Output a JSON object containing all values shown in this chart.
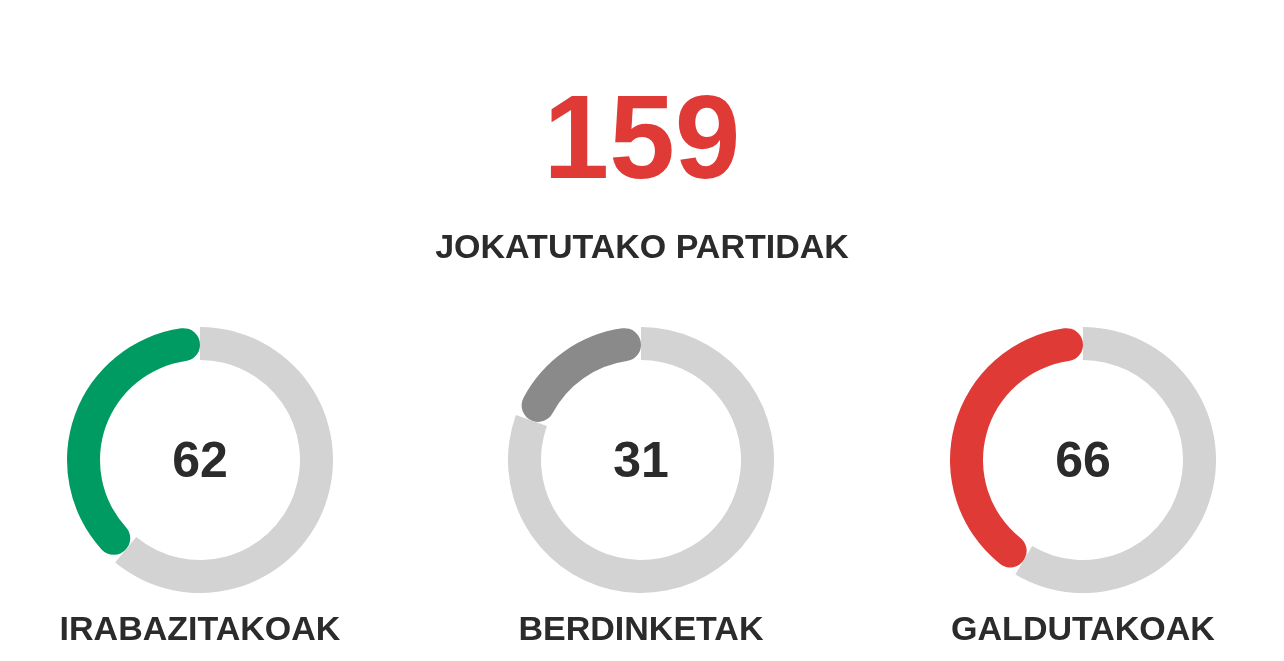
{
  "chart_data": [
    {
      "type": "other",
      "annotations": [
        "159",
        "JOKATUTAKO PARTIDAK"
      ]
    },
    {
      "type": "donut",
      "title": "IRABAZITAKOAK",
      "categories": [
        null,
        null
      ],
      "values": [
        62,
        97
      ],
      "colors": [
        "#009b63",
        "#d3d3d3"
      ],
      "value_labels": [
        "62",
        null
      ]
    },
    {
      "type": "donut",
      "title": "BERDINKETAK",
      "categories": [
        null,
        null
      ],
      "values": [
        31,
        128
      ],
      "colors": [
        "#8a8a8a",
        "#d3d3d3"
      ],
      "value_labels": [
        "31",
        null
      ]
    },
    {
      "type": "donut",
      "title": "GALDUTAKOAK",
      "categories": [
        null,
        null
      ],
      "values": [
        66,
        93
      ],
      "colors": [
        "#e03a36",
        "#d3d3d3"
      ],
      "value_labels": [
        "66",
        null
      ]
    }
  ]
}
